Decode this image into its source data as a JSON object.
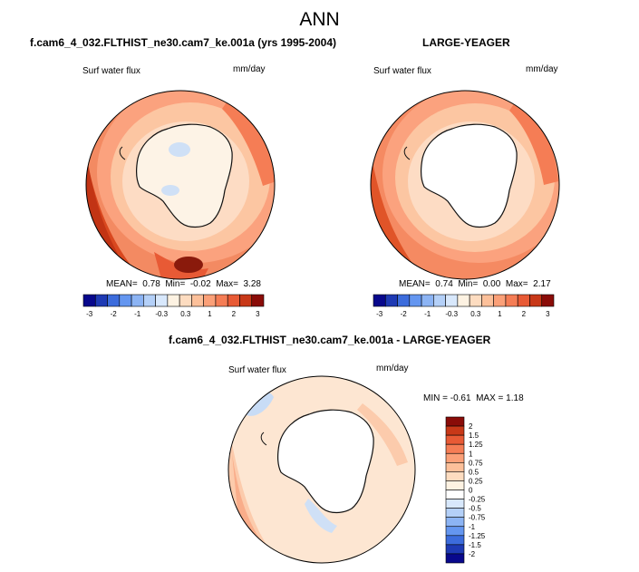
{
  "main_title": "ANN",
  "chart_data": [
    {
      "type": "heatmap",
      "projection": "south polar stereographic",
      "title": "f.cam6_4_032.FLTHIST_ne30.cam7_ke.001a (yrs 1995-2004)",
      "variable": "Surf water flux",
      "units": "mm/day",
      "stats": {
        "mean_label": "MEAN=",
        "mean": "0.78",
        "min_label": "Min=",
        "min": "-0.02",
        "max_label": "Max=",
        "max": "3.28"
      },
      "colorbar": {
        "ticks": [
          "-3",
          "-2",
          "-1",
          "-0.3",
          "0.3",
          "1",
          "2",
          "3"
        ],
        "colors": [
          "#08088c",
          "#1e3ab4",
          "#3c6cdc",
          "#6496f0",
          "#8cb4f4",
          "#b4d0f8",
          "#d8e8fc",
          "#fdf2e2",
          "#fddcc0",
          "#fcc09a",
          "#fba078",
          "#f57d55",
          "#e85a35",
          "#c83818",
          "#8a0c08"
        ]
      }
    },
    {
      "type": "heatmap",
      "projection": "south polar stereographic",
      "title": "LARGE-YEAGER",
      "variable": "Surf water flux",
      "units": "mm/day",
      "stats": {
        "mean_label": "MEAN=",
        "mean": "0.74",
        "min_label": "Min=",
        "min": "0.00",
        "max_label": "Max=",
        "max": "2.17"
      },
      "colorbar": {
        "ticks": [
          "-3",
          "-2",
          "-1",
          "-0.3",
          "0.3",
          "1",
          "2",
          "3"
        ],
        "colors": [
          "#08088c",
          "#1e3ab4",
          "#3c6cdc",
          "#6496f0",
          "#8cb4f4",
          "#b4d0f8",
          "#d8e8fc",
          "#fdf2e2",
          "#fddcc0",
          "#fcc09a",
          "#fba078",
          "#f57d55",
          "#e85a35",
          "#c83818",
          "#8a0c08"
        ]
      }
    },
    {
      "type": "heatmap",
      "projection": "south polar stereographic",
      "title": "f.cam6_4_032.FLTHIST_ne30.cam7_ke.001a - LARGE-YEAGER",
      "variable": "Surf water flux",
      "units": "mm/day",
      "stats": {
        "min_label": "MIN =",
        "min": "-0.61",
        "max_label": "MAX =",
        "max": "1.18"
      },
      "colorbar": {
        "ticks": [
          "2",
          "1.5",
          "1.25",
          "1",
          "0.75",
          "0.5",
          "0.25",
          "0",
          "-0.25",
          "-0.5",
          "-0.75",
          "-1",
          "-1.25",
          "-1.5",
          "-2"
        ],
        "colors": [
          "#8a0c08",
          "#c83818",
          "#e85a35",
          "#f57d55",
          "#fba078",
          "#fcc09a",
          "#fddcc0",
          "#fdf2e2",
          "#ffffff",
          "#d8e8fc",
          "#b4d0f8",
          "#8cb4f4",
          "#6496f0",
          "#3c6cdc",
          "#1e3ab4",
          "#08088c"
        ]
      }
    }
  ]
}
